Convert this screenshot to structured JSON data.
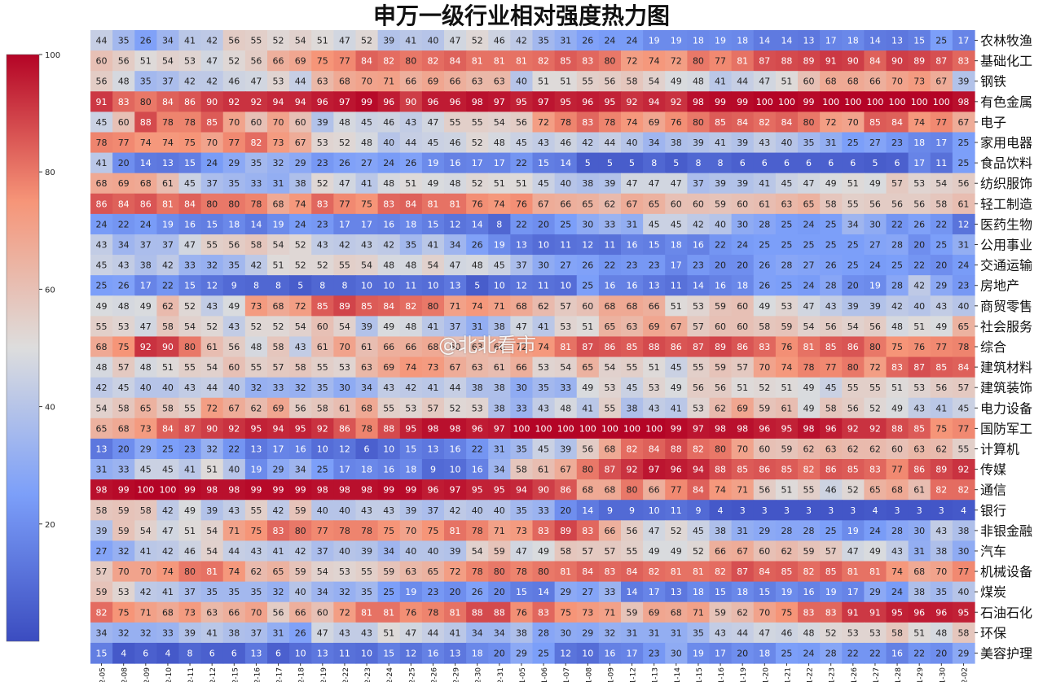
{
  "chart_data": {
    "type": "heatmap",
    "title": "申万一级行业相对强度热力图",
    "xlabel": "",
    "ylabel": "",
    "colormap": "coolwarm",
    "vmin": 0,
    "vmax": 100,
    "colorbar_ticks": [
      "100",
      "80",
      "60",
      "40",
      "20"
    ],
    "x": [
      "12-05",
      "12-08",
      "12-09",
      "12-10",
      "12-11",
      "12-12",
      "12-15",
      "12-16",
      "12-17",
      "12-18",
      "12-19",
      "12-22",
      "12-23",
      "12-24",
      "12-25",
      "12-26",
      "12-29",
      "12-30",
      "12-31",
      "01-05",
      "01-06",
      "01-07",
      "01-08",
      "01-09",
      "01-12",
      "01-13",
      "01-14",
      "01-15",
      "01-16",
      "01-19",
      "01-20",
      "01-21",
      "01-22",
      "01-23",
      "01-26",
      "01-27",
      "01-28",
      "01-29",
      "01-30",
      "02-02"
    ],
    "y": [
      "农林牧渔",
      "基础化工",
      "钢铁",
      "有色金属",
      "电子",
      "家用电器",
      "食品饮料",
      "纺织服饰",
      "轻工制造",
      "医药生物",
      "公用事业",
      "交通运输",
      "房地产",
      "商贸零售",
      "社会服务",
      "综合",
      "建筑材料",
      "建筑装饰",
      "电力设备",
      "国防军工",
      "计算机",
      "传媒",
      "通信",
      "银行",
      "非银金融",
      "汽车",
      "机械设备",
      "煤炭",
      "石油石化",
      "环保",
      "美容护理"
    ],
    "values": [
      [
        44,
        35,
        26,
        34,
        41,
        42,
        56,
        55,
        52,
        54,
        51,
        47,
        52,
        39,
        41,
        40,
        47,
        52,
        46,
        42,
        35,
        31,
        26,
        24,
        24,
        19,
        19,
        18,
        19,
        18,
        14,
        14,
        13,
        17,
        18,
        14,
        13,
        15,
        25,
        17
      ],
      [
        60,
        56,
        51,
        54,
        53,
        47,
        52,
        56,
        66,
        69,
        75,
        77,
        84,
        82,
        80,
        82,
        84,
        81,
        81,
        81,
        82,
        85,
        83,
        80,
        72,
        74,
        72,
        80,
        77,
        81,
        87,
        88,
        89,
        91,
        90,
        84,
        90,
        89,
        87,
        83
      ],
      [
        56,
        48,
        35,
        37,
        42,
        42,
        46,
        47,
        53,
        44,
        63,
        68,
        70,
        71,
        66,
        69,
        66,
        63,
        63,
        40,
        51,
        51,
        55,
        56,
        58,
        54,
        49,
        48,
        41,
        44,
        47,
        51,
        60,
        68,
        68,
        66,
        70,
        73,
        67,
        39
      ],
      [
        91,
        83,
        80,
        84,
        86,
        90,
        92,
        92,
        94,
        94,
        96,
        97,
        99,
        96,
        90,
        96,
        96,
        98,
        97,
        95,
        97,
        95,
        96,
        95,
        92,
        94,
        92,
        98,
        99,
        99,
        100,
        100,
        99,
        100,
        100,
        100,
        100,
        100,
        100,
        98
      ],
      [
        45,
        60,
        88,
        78,
        78,
        85,
        70,
        60,
        70,
        60,
        39,
        48,
        45,
        46,
        43,
        47,
        55,
        55,
        54,
        56,
        72,
        78,
        83,
        78,
        74,
        69,
        76,
        80,
        85,
        84,
        82,
        84,
        80,
        72,
        70,
        85,
        84,
        74,
        77,
        67
      ],
      [
        78,
        77,
        74,
        74,
        75,
        70,
        77,
        82,
        73,
        67,
        53,
        52,
        48,
        40,
        44,
        45,
        46,
        52,
        48,
        45,
        43,
        46,
        42,
        44,
        40,
        34,
        38,
        39,
        41,
        39,
        43,
        40,
        35,
        31,
        25,
        27,
        23,
        18,
        17,
        25
      ],
      [
        41,
        20,
        14,
        13,
        15,
        24,
        29,
        35,
        32,
        29,
        23,
        26,
        27,
        24,
        26,
        19,
        16,
        17,
        17,
        22,
        15,
        14,
        5,
        5,
        5,
        8,
        5,
        8,
        8,
        6,
        6,
        6,
        6,
        6,
        6,
        5,
        6,
        17,
        11,
        25
      ],
      [
        68,
        69,
        68,
        61,
        45,
        37,
        35,
        33,
        31,
        38,
        52,
        47,
        41,
        48,
        51,
        49,
        48,
        52,
        51,
        51,
        45,
        40,
        38,
        39,
        47,
        47,
        47,
        37,
        39,
        39,
        41,
        45,
        47,
        49,
        51,
        49,
        57,
        53,
        54,
        56
      ],
      [
        86,
        84,
        86,
        81,
        84,
        80,
        80,
        78,
        68,
        74,
        83,
        77,
        75,
        83,
        84,
        81,
        81,
        76,
        74,
        76,
        67,
        66,
        65,
        62,
        67,
        65,
        60,
        60,
        59,
        60,
        61,
        63,
        65,
        58,
        55,
        56,
        56,
        56,
        58,
        61
      ],
      [
        24,
        22,
        24,
        19,
        16,
        15,
        18,
        14,
        19,
        24,
        23,
        17,
        17,
        16,
        18,
        15,
        12,
        14,
        8,
        22,
        20,
        25,
        30,
        33,
        31,
        45,
        45,
        42,
        40,
        30,
        28,
        25,
        24,
        25,
        34,
        30,
        22,
        26,
        22,
        12
      ],
      [
        43,
        34,
        37,
        37,
        47,
        55,
        56,
        58,
        54,
        52,
        43,
        42,
        43,
        42,
        35,
        41,
        34,
        26,
        19,
        13,
        10,
        11,
        12,
        11,
        16,
        15,
        18,
        16,
        22,
        24,
        25,
        25,
        25,
        25,
        25,
        27,
        28,
        20,
        25,
        31
      ],
      [
        45,
        43,
        38,
        42,
        33,
        32,
        35,
        42,
        51,
        52,
        52,
        55,
        54,
        48,
        48,
        54,
        47,
        48,
        45,
        37,
        30,
        27,
        26,
        22,
        23,
        23,
        17,
        23,
        20,
        20,
        26,
        28,
        27,
        26,
        25,
        24,
        25,
        22,
        20,
        24
      ],
      [
        25,
        26,
        17,
        22,
        15,
        12,
        9,
        8,
        8,
        5,
        8,
        8,
        10,
        10,
        11,
        10,
        13,
        5,
        10,
        12,
        11,
        10,
        25,
        16,
        16,
        13,
        11,
        14,
        16,
        18,
        26,
        25,
        24,
        28,
        20,
        19,
        28,
        42,
        29,
        23
      ],
      [
        49,
        48,
        49,
        62,
        52,
        43,
        49,
        73,
        68,
        72,
        85,
        89,
        85,
        84,
        82,
        80,
        71,
        74,
        71,
        68,
        62,
        57,
        60,
        68,
        68,
        66,
        51,
        53,
        59,
        60,
        49,
        53,
        47,
        43,
        39,
        39,
        42,
        40,
        43,
        40
      ],
      [
        55,
        53,
        47,
        58,
        54,
        52,
        43,
        52,
        52,
        54,
        60,
        54,
        39,
        49,
        48,
        41,
        37,
        31,
        38,
        47,
        41,
        53,
        51,
        65,
        63,
        69,
        67,
        57,
        60,
        60,
        58,
        59,
        54,
        56,
        54,
        56,
        48,
        51,
        49,
        65
      ],
      [
        68,
        75,
        92,
        90,
        80,
        61,
        56,
        48,
        58,
        43,
        61,
        70,
        61,
        66,
        66,
        68,
        60,
        63,
        66,
        72,
        74,
        81,
        87,
        86,
        85,
        88,
        86,
        87,
        89,
        86,
        83,
        76,
        81,
        85,
        86,
        80,
        75,
        76,
        77,
        78
      ],
      [
        48,
        57,
        48,
        51,
        55,
        54,
        60,
        55,
        57,
        58,
        55,
        53,
        63,
        69,
        74,
        73,
        67,
        63,
        61,
        66,
        53,
        54,
        65,
        54,
        55,
        51,
        45,
        55,
        59,
        57,
        70,
        74,
        78,
        77,
        80,
        72,
        83,
        87,
        85,
        84
      ],
      [
        42,
        45,
        40,
        40,
        43,
        44,
        40,
        32,
        33,
        32,
        35,
        30,
        34,
        43,
        42,
        41,
        44,
        38,
        38,
        30,
        35,
        33,
        49,
        53,
        45,
        53,
        49,
        56,
        56,
        51,
        52,
        51,
        49,
        45,
        55,
        55,
        51,
        53,
        56,
        57
      ],
      [
        54,
        58,
        65,
        58,
        55,
        72,
        67,
        62,
        69,
        56,
        58,
        61,
        68,
        55,
        53,
        57,
        52,
        53,
        38,
        33,
        43,
        48,
        41,
        55,
        38,
        43,
        41,
        53,
        62,
        69,
        59,
        61,
        49,
        58,
        56,
        52,
        49,
        43,
        41,
        45
      ],
      [
        65,
        68,
        73,
        84,
        87,
        90,
        92,
        95,
        94,
        95,
        92,
        86,
        78,
        88,
        95,
        98,
        98,
        96,
        97,
        100,
        100,
        100,
        100,
        100,
        100,
        100,
        99,
        97,
        98,
        98,
        96,
        95,
        98,
        96,
        92,
        92,
        88,
        85,
        75,
        77
      ],
      [
        13,
        20,
        29,
        25,
        23,
        32,
        22,
        13,
        17,
        16,
        10,
        12,
        6,
        10,
        15,
        13,
        16,
        22,
        31,
        35,
        45,
        39,
        56,
        68,
        82,
        84,
        88,
        82,
        80,
        70,
        60,
        59,
        62,
        63,
        62,
        62,
        60,
        63,
        62,
        55
      ],
      [
        31,
        33,
        45,
        45,
        41,
        51,
        40,
        19,
        29,
        34,
        25,
        17,
        18,
        16,
        18,
        9,
        10,
        16,
        34,
        58,
        61,
        67,
        80,
        87,
        92,
        97,
        96,
        94,
        88,
        85,
        86,
        85,
        82,
        86,
        85,
        83,
        77,
        86,
        89,
        92
      ],
      [
        98,
        99,
        100,
        100,
        99,
        98,
        98,
        99,
        99,
        99,
        98,
        98,
        98,
        99,
        99,
        96,
        97,
        95,
        95,
        94,
        90,
        86,
        68,
        68,
        80,
        66,
        77,
        84,
        74,
        71,
        56,
        51,
        55,
        46,
        52,
        65,
        68,
        61,
        82,
        82
      ],
      [
        58,
        59,
        58,
        42,
        49,
        39,
        43,
        55,
        42,
        59,
        40,
        40,
        43,
        43,
        39,
        37,
        42,
        40,
        40,
        35,
        33,
        20,
        14,
        9,
        9,
        10,
        11,
        9,
        4,
        3,
        3,
        3,
        3,
        3,
        3,
        4,
        3,
        3,
        3,
        4
      ],
      [
        39,
        59,
        54,
        47,
        51,
        54,
        71,
        75,
        83,
        80,
        77,
        78,
        78,
        75,
        70,
        75,
        81,
        78,
        71,
        73,
        83,
        89,
        83,
        66,
        56,
        47,
        52,
        45,
        38,
        31,
        29,
        28,
        28,
        25,
        19,
        24,
        28,
        30,
        43,
        38
      ],
      [
        27,
        32,
        41,
        42,
        46,
        54,
        44,
        43,
        41,
        42,
        37,
        40,
        39,
        34,
        40,
        40,
        39,
        54,
        59,
        47,
        49,
        58,
        57,
        57,
        55,
        49,
        49,
        52,
        66,
        67,
        60,
        62,
        59,
        57,
        47,
        49,
        43,
        31,
        38,
        30
      ],
      [
        57,
        70,
        70,
        74,
        80,
        81,
        74,
        62,
        65,
        59,
        54,
        53,
        55,
        59,
        63,
        65,
        72,
        78,
        80,
        78,
        80,
        81,
        84,
        83,
        84,
        82,
        81,
        81,
        82,
        87,
        84,
        85,
        82,
        85,
        81,
        81,
        74,
        68,
        70,
        77
      ],
      [
        59,
        53,
        42,
        41,
        37,
        35,
        35,
        35,
        32,
        40,
        34,
        32,
        35,
        25,
        19,
        23,
        20,
        26,
        20,
        15,
        14,
        29,
        27,
        33,
        14,
        17,
        13,
        18,
        15,
        18,
        15,
        19,
        16,
        19,
        17,
        29,
        24,
        38,
        35,
        40
      ],
      [
        82,
        75,
        71,
        68,
        73,
        63,
        66,
        70,
        56,
        66,
        60,
        72,
        81,
        81,
        76,
        78,
        81,
        88,
        88,
        76,
        83,
        75,
        73,
        71,
        59,
        69,
        68,
        71,
        59,
        62,
        70,
        75,
        83,
        83,
        91,
        91,
        95,
        96,
        96,
        95
      ],
      [
        34,
        32,
        32,
        33,
        39,
        41,
        38,
        37,
        31,
        26,
        47,
        43,
        43,
        51,
        47,
        44,
        41,
        34,
        34,
        38,
        28,
        30,
        29,
        32,
        31,
        31,
        31,
        35,
        43,
        44,
        47,
        46,
        48,
        52,
        53,
        53,
        58,
        51,
        48,
        58
      ],
      [
        15,
        4,
        6,
        4,
        8,
        6,
        6,
        13,
        6,
        10,
        13,
        11,
        10,
        15,
        12,
        16,
        13,
        18,
        20,
        29,
        25,
        12,
        10,
        16,
        17,
        23,
        30,
        19,
        17,
        20,
        18,
        25,
        24,
        28,
        22,
        22,
        16,
        22,
        20,
        29
      ]
    ]
  },
  "watermark": "@北北看市"
}
